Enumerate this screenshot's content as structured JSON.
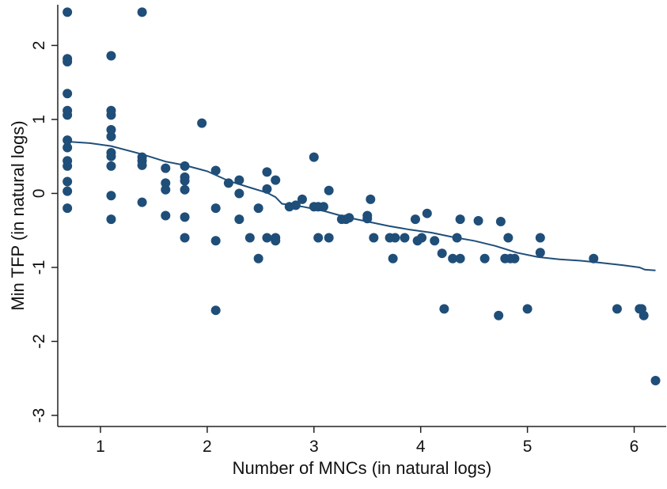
{
  "chart_data": {
    "type": "scatter",
    "title": "",
    "xlabel": "Number of MNCs (in natural logs)",
    "ylabel": "Min TFP (in natural logs)",
    "xlim": [
      0.6,
      6.3
    ],
    "ylim": [
      -3.15,
      2.55
    ],
    "xticks": [
      1,
      2,
      3,
      4,
      5,
      6
    ],
    "yticks": [
      2,
      1,
      0,
      -1,
      -2,
      -3
    ],
    "grid": false,
    "legend": "none",
    "colors": {
      "points": "#1f4e79",
      "line": "#1f4e79",
      "axis": "#222222"
    },
    "series": [
      {
        "type": "scatter",
        "points": [
          [
            0.69,
            2.45
          ],
          [
            0.69,
            1.82
          ],
          [
            0.69,
            1.78
          ],
          [
            0.69,
            1.35
          ],
          [
            0.69,
            1.12
          ],
          [
            0.69,
            1.06
          ],
          [
            0.69,
            0.72
          ],
          [
            0.69,
            0.62
          ],
          [
            0.69,
            0.44
          ],
          [
            0.69,
            0.37
          ],
          [
            0.69,
            0.16
          ],
          [
            0.69,
            0.03
          ],
          [
            0.69,
            -0.2
          ],
          [
            1.1,
            1.86
          ],
          [
            1.1,
            1.12
          ],
          [
            1.1,
            1.06
          ],
          [
            1.1,
            0.86
          ],
          [
            1.1,
            0.77
          ],
          [
            1.1,
            0.55
          ],
          [
            1.1,
            0.5
          ],
          [
            1.1,
            0.37
          ],
          [
            1.1,
            -0.03
          ],
          [
            1.1,
            -0.35
          ],
          [
            1.39,
            2.45
          ],
          [
            1.39,
            0.49
          ],
          [
            1.39,
            0.44
          ],
          [
            1.39,
            0.38
          ],
          [
            1.39,
            -0.12
          ],
          [
            1.61,
            0.34
          ],
          [
            1.61,
            0.14
          ],
          [
            1.61,
            0.05
          ],
          [
            1.61,
            -0.3
          ],
          [
            1.79,
            0.37
          ],
          [
            1.79,
            0.22
          ],
          [
            1.79,
            0.17
          ],
          [
            1.79,
            0.05
          ],
          [
            1.79,
            -0.32
          ],
          [
            1.79,
            -0.6
          ],
          [
            1.95,
            0.95
          ],
          [
            2.08,
            0.31
          ],
          [
            2.08,
            -0.2
          ],
          [
            2.08,
            -0.64
          ],
          [
            2.08,
            -1.58
          ],
          [
            2.2,
            0.14
          ],
          [
            2.3,
            0.18
          ],
          [
            2.3,
            0.0
          ],
          [
            2.3,
            -0.35
          ],
          [
            2.4,
            -0.6
          ],
          [
            2.48,
            -0.2
          ],
          [
            2.48,
            -0.88
          ],
          [
            2.56,
            0.29
          ],
          [
            2.56,
            0.06
          ],
          [
            2.56,
            -0.6
          ],
          [
            2.64,
            0.18
          ],
          [
            2.64,
            -0.6
          ],
          [
            2.64,
            -0.64
          ],
          [
            2.77,
            -0.18
          ],
          [
            2.83,
            -0.16
          ],
          [
            2.89,
            -0.08
          ],
          [
            3.0,
            0.49
          ],
          [
            3.0,
            -0.18
          ],
          [
            3.04,
            -0.6
          ],
          [
            3.04,
            -0.18
          ],
          [
            3.09,
            -0.18
          ],
          [
            3.14,
            0.04
          ],
          [
            3.14,
            -0.6
          ],
          [
            3.26,
            -0.35
          ],
          [
            3.3,
            -0.35
          ],
          [
            3.33,
            -0.33
          ],
          [
            3.5,
            -0.3
          ],
          [
            3.5,
            -0.34
          ],
          [
            3.53,
            -0.08
          ],
          [
            3.56,
            -0.6
          ],
          [
            3.71,
            -0.6
          ],
          [
            3.74,
            -0.88
          ],
          [
            3.76,
            -0.6
          ],
          [
            3.85,
            -0.6
          ],
          [
            3.95,
            -0.35
          ],
          [
            3.97,
            -0.64
          ],
          [
            4.01,
            -0.6
          ],
          [
            4.06,
            -0.27
          ],
          [
            4.13,
            -0.64
          ],
          [
            4.2,
            -0.81
          ],
          [
            4.22,
            -1.56
          ],
          [
            4.3,
            -0.88
          ],
          [
            4.34,
            -0.6
          ],
          [
            4.37,
            -0.35
          ],
          [
            4.37,
            -0.88
          ],
          [
            4.54,
            -0.37
          ],
          [
            4.6,
            -0.88
          ],
          [
            4.73,
            -1.65
          ],
          [
            4.75,
            -0.38
          ],
          [
            4.79,
            -0.88
          ],
          [
            4.82,
            -0.6
          ],
          [
            4.84,
            -0.88
          ],
          [
            4.88,
            -0.88
          ],
          [
            5.0,
            -1.56
          ],
          [
            5.12,
            -0.6
          ],
          [
            5.12,
            -0.8
          ],
          [
            5.62,
            -0.88
          ],
          [
            5.84,
            -1.56
          ],
          [
            6.05,
            -1.56
          ],
          [
            6.07,
            -1.56
          ],
          [
            6.09,
            -1.65
          ],
          [
            6.2,
            -2.53
          ]
        ]
      },
      {
        "type": "line",
        "points": [
          [
            0.69,
            0.7
          ],
          [
            0.9,
            0.68
          ],
          [
            1.1,
            0.64
          ],
          [
            1.39,
            0.53
          ],
          [
            1.61,
            0.43
          ],
          [
            1.79,
            0.38
          ],
          [
            2.0,
            0.3
          ],
          [
            2.2,
            0.17
          ],
          [
            2.4,
            0.08
          ],
          [
            2.56,
            0.01
          ],
          [
            2.64,
            -0.05
          ],
          [
            2.7,
            -0.14
          ],
          [
            2.9,
            -0.18
          ],
          [
            3.1,
            -0.24
          ],
          [
            3.3,
            -0.32
          ],
          [
            3.5,
            -0.38
          ],
          [
            3.7,
            -0.44
          ],
          [
            3.9,
            -0.49
          ],
          [
            4.1,
            -0.53
          ],
          [
            4.3,
            -0.59
          ],
          [
            4.5,
            -0.64
          ],
          [
            4.7,
            -0.71
          ],
          [
            4.9,
            -0.8
          ],
          [
            5.1,
            -0.86
          ],
          [
            5.3,
            -0.89
          ],
          [
            5.5,
            -0.91
          ],
          [
            5.7,
            -0.94
          ],
          [
            5.9,
            -0.97
          ],
          [
            6.05,
            -1.0
          ],
          [
            6.1,
            -1.03
          ],
          [
            6.2,
            -1.04
          ]
        ]
      }
    ]
  }
}
